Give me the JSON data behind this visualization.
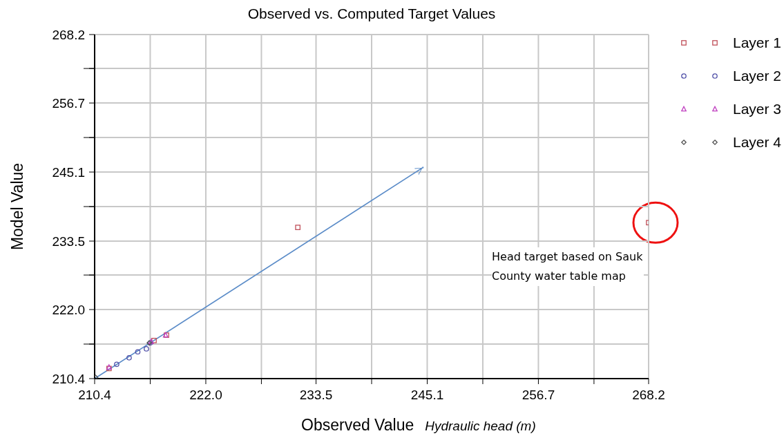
{
  "chart_data": {
    "type": "scatter",
    "title": "Observed vs. Computed Target Values",
    "xlabel": "Observed Value",
    "ylabel": "Model Value",
    "annotations": [
      "Hydraulic head (m)",
      {
        "text": "Head target based on Sauk County water table map",
        "x": 268.2,
        "y": 236.6
      }
    ],
    "xlim": [
      210.4,
      268.2
    ],
    "ylim": [
      210.4,
      268.2
    ],
    "xticks": [
      210.4,
      {
        "value": 216.2,
        "label": null
      },
      {
        "value": 222.0,
        "label": "222.0"
      },
      {
        "value": 227.8,
        "label": null
      },
      233.5,
      {
        "value": 239.3,
        "label": null
      },
      245.1,
      {
        "value": 250.9,
        "label": null
      },
      256.7,
      {
        "value": 262.5,
        "label": null
      },
      268.2
    ],
    "yticks": [
      210.4,
      {
        "value": 216.2,
        "label": null
      },
      {
        "value": 222.0,
        "label": "222.0"
      },
      {
        "value": 227.8,
        "label": null
      },
      233.5,
      {
        "value": 239.3,
        "label": null
      },
      245.1,
      {
        "value": 250.9,
        "label": null
      },
      256.7,
      {
        "value": 262.5,
        "label": null
      },
      268.2
    ],
    "grid": true,
    "legend": "top right",
    "series": [
      {
        "name": "Layer 1",
        "color": "#c0505a",
        "marker": "square",
        "x": [
          231.6,
          268.2,
          216.6,
          217.9,
          211.9
        ],
        "values": [
          235.8,
          236.6,
          216.8,
          217.7,
          212.1
        ]
      },
      {
        "name": "Layer 2",
        "color": "#5050a8",
        "marker": "circle",
        "x": [
          212.7,
          214.0,
          214.9,
          215.8,
          216.2
        ],
        "values": [
          212.8,
          213.9,
          214.9,
          215.4,
          216.4
        ]
      },
      {
        "name": "Layer 3",
        "color": "#c040c0",
        "marker": "triangle",
        "x": [
          211.9,
          216.3,
          217.8
        ],
        "values": [
          212.3,
          216.6,
          217.7
        ]
      },
      {
        "name": "Layer 4",
        "color": "#505050",
        "marker": "diamond",
        "x": [
          210.5,
          216.1
        ],
        "values": [
          210.6,
          216.4
        ]
      }
    ]
  }
}
